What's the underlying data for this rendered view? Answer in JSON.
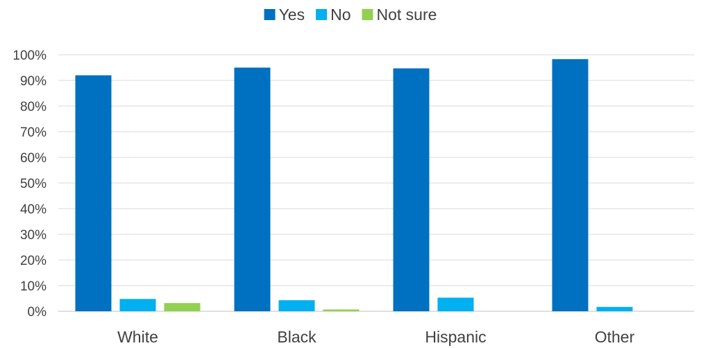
{
  "chart_data": {
    "type": "bar",
    "title": "",
    "xlabel": "",
    "ylabel": "",
    "categories": [
      "White",
      "Black",
      "Hispanic",
      "Other"
    ],
    "series": [
      {
        "name": "Yes",
        "color": "#0070C0",
        "values": [
          92,
          95,
          94.7,
          98.3
        ]
      },
      {
        "name": "No",
        "color": "#00B0F0",
        "values": [
          4.8,
          4.3,
          5.3,
          1.7
        ]
      },
      {
        "name": "Not sure",
        "color": "#92D050",
        "values": [
          3.2,
          0.7,
          0,
          0
        ]
      }
    ],
    "ylim": [
      0,
      100
    ],
    "yticks": [
      0,
      10,
      20,
      30,
      40,
      50,
      60,
      70,
      80,
      90,
      100
    ],
    "ytick_labels": [
      "0%",
      "10%",
      "20%",
      "30%",
      "40%",
      "50%",
      "60%",
      "70%",
      "80%",
      "90%",
      "100%"
    ],
    "grid": true,
    "legend_position": "top-center"
  }
}
